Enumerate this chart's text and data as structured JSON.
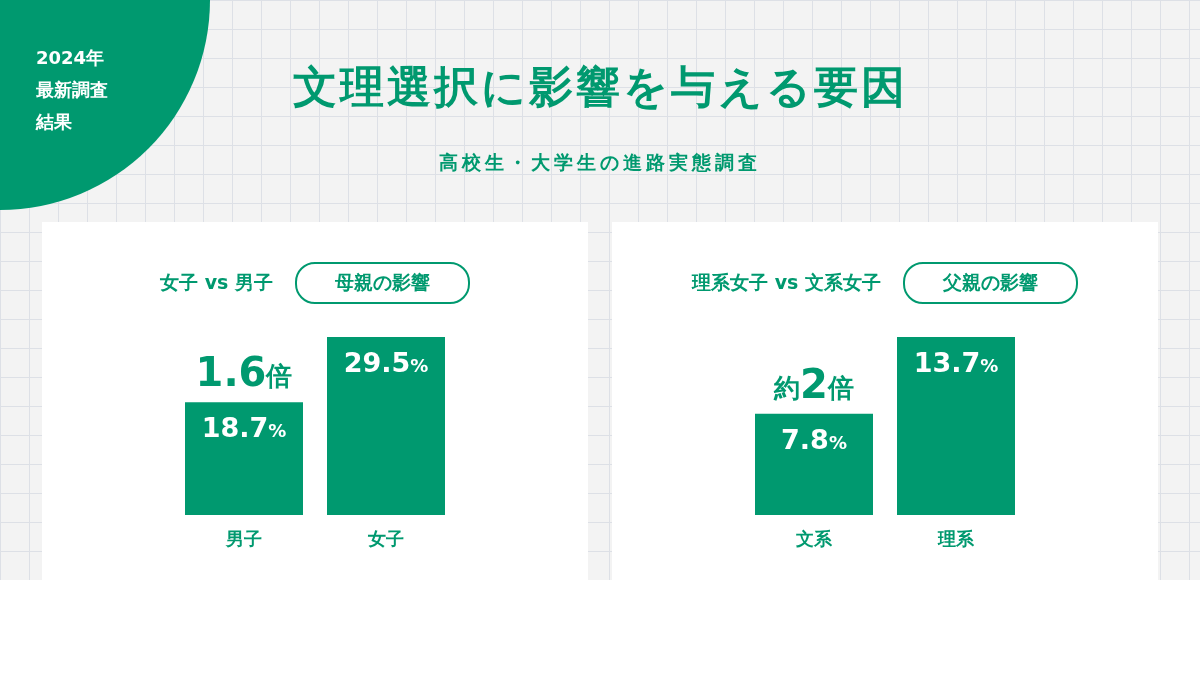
{
  "chart_data": [
    {
      "type": "bar",
      "title": "女子 vs 男子",
      "subtitle": "母親の影響",
      "categories": [
        "男子",
        "女子"
      ],
      "values": [
        18.7,
        29.5
      ],
      "color": "#00996f",
      "value_labels": [
        "18.7%",
        "29.5%"
      ],
      "annotations": [
        "2024年最新調査結果",
        "文理選択に影響を与える要因",
        "高校生・大学生の進路実態調査",
        {
          "text": "1.6倍",
          "x": "男子",
          "y": 18.7
        }
      ]
    },
    {
      "type": "bar",
      "title": "理系女子 vs 文系女子",
      "subtitle": "父親の影響",
      "categories": [
        "文系",
        "理系"
      ],
      "values": [
        7.8,
        13.7
      ],
      "color": "#00996f",
      "value_labels": [
        "7.8%",
        "13.7%"
      ],
      "annotations": [
        {
          "text": "約2倍",
          "x": "文系",
          "y": 7.8
        }
      ]
    }
  ]
}
